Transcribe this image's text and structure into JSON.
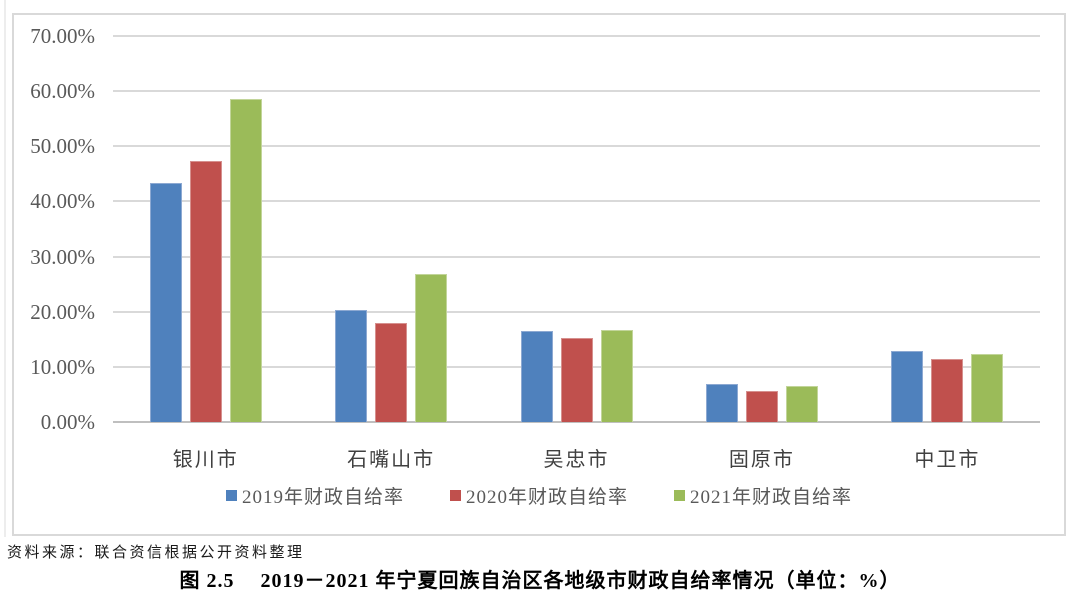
{
  "figure": {
    "caption_label": "图 2.5",
    "caption_text": "2019－2021 年宁夏回族自治区各地级市财政自给率情况（单位：%）",
    "source_note": "资料来源：联合资信根据公开资料整理"
  },
  "chart_data": {
    "type": "bar",
    "title": "",
    "categories": [
      "银川市",
      "石嘴山市",
      "吴忠市",
      "固原市",
      "中卫市"
    ],
    "series": [
      {
        "name": "2019年财政自给率",
        "color": "#4F81BD",
        "border_color": "#8DA9D2",
        "values": [
          43.3,
          20.4,
          16.5,
          6.9,
          12.8
        ]
      },
      {
        "name": "2020年财政自给率",
        "color": "#C0504D",
        "border_color": "#D6908E",
        "values": [
          47.3,
          18.0,
          15.3,
          5.7,
          11.5
        ]
      },
      {
        "name": "2021年财政自给率",
        "color": "#9BBB59",
        "border_color": "#C2D59A",
        "values": [
          58.6,
          26.9,
          16.6,
          6.5,
          12.4
        ]
      }
    ],
    "xlabel": "",
    "ylabel": "",
    "ylim": [
      0,
      70
    ],
    "ytick_step": 10,
    "yticks": [
      "0.00%",
      "10.00%",
      "20.00%",
      "30.00%",
      "40.00%",
      "50.00%",
      "60.00%",
      "70.00%"
    ],
    "grid": true,
    "grid_color": "#D9D9D9",
    "axis_line_color": "#BFBFBF",
    "legend_position": "bottom",
    "unit": "%"
  }
}
